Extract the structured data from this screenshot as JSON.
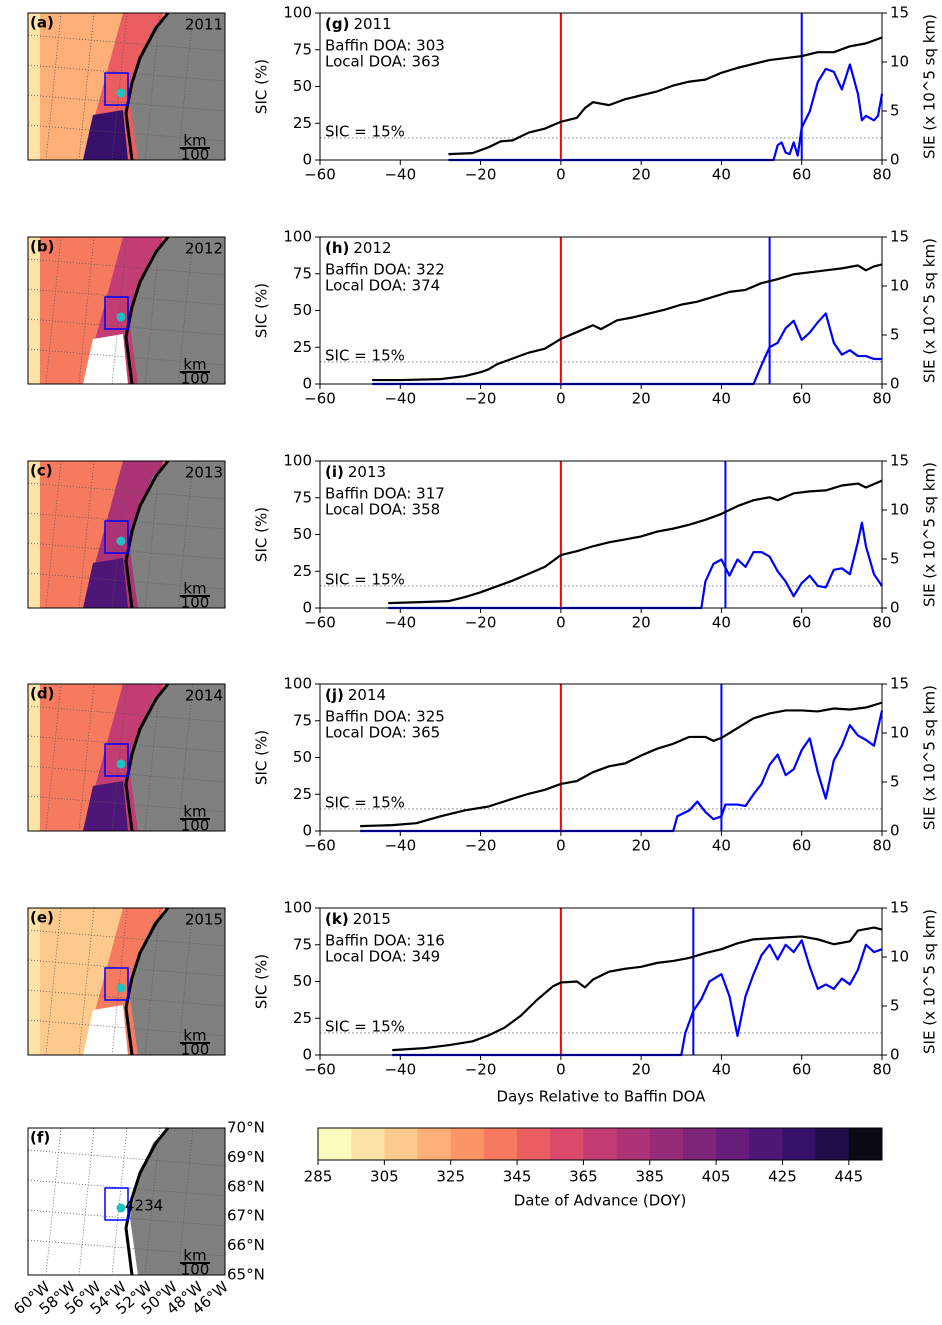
{
  "maps": [
    {
      "label": "(a)",
      "year": "2011",
      "scale_unit": "km",
      "scale_value": "100"
    },
    {
      "label": "(b)",
      "year": "2012",
      "scale_unit": "km",
      "scale_value": "100"
    },
    {
      "label": "(c)",
      "year": "2013",
      "scale_unit": "km",
      "scale_value": "100"
    },
    {
      "label": "(d)",
      "year": "2014",
      "scale_unit": "km",
      "scale_value": "100"
    },
    {
      "label": "(e)",
      "year": "2015",
      "scale_unit": "km",
      "scale_value": "100"
    },
    {
      "label": "(f)",
      "station": "4234",
      "scale_unit": "km",
      "scale_value": "100",
      "lat_labels": [
        "70°N",
        "69°N",
        "68°N",
        "67°N",
        "66°N",
        "65°N"
      ],
      "lon_labels": [
        "60°W",
        "58°W",
        "56°W",
        "54°W",
        "52°W",
        "50°W",
        "48°W",
        "46°W"
      ]
    }
  ],
  "chart_data": [
    {
      "type": "line",
      "panel_label": "(g)",
      "year": "2011",
      "baffin_doa": "Baffin DOA: 303",
      "local_doa": "Local DOA: 363",
      "threshold_label": "SIC = 15%",
      "hline": 15,
      "ylabel": "SIC (%)",
      "y2label": "SIE (x 10^5 sq km)",
      "xlim": [
        -60,
        80
      ],
      "xticks": [
        {
          "value": -60,
          "label": "−60"
        },
        {
          "value": -40,
          "label": "−40"
        },
        {
          "value": -20,
          "label": "−20"
        },
        0,
        20,
        40,
        60,
        80
      ],
      "ylim": [
        0,
        100
      ],
      "yticks": [
        0,
        25,
        50,
        75,
        100
      ],
      "y2lim": [
        0,
        15
      ],
      "y2ticks": [
        0,
        5,
        10,
        15
      ],
      "vlines": [
        {
          "x": 0,
          "color": "#ff0000"
        },
        {
          "x": 60,
          "color": "#0000ff"
        }
      ],
      "series": [
        {
          "color": "#000000",
          "axis": "y2",
          "x": [
            -28,
            -22,
            -18,
            -15,
            -12,
            -8,
            -4,
            0,
            4,
            6,
            8,
            12,
            16,
            20,
            24,
            28,
            32,
            36,
            40,
            44,
            48,
            52,
            56,
            60,
            64,
            68,
            72,
            76,
            80
          ],
          "values": [
            0.6,
            0.7,
            1.3,
            1.9,
            2.0,
            2.8,
            3.2,
            3.9,
            4.3,
            5.3,
            5.9,
            5.6,
            6.2,
            6.6,
            7.0,
            7.6,
            8.0,
            8.2,
            8.9,
            9.4,
            9.8,
            10.2,
            10.4,
            10.6,
            11.0,
            11.0,
            11.6,
            11.9,
            12.5
          ]
        },
        {
          "color": "#0000ff",
          "axis": "y",
          "x": [
            -28,
            53,
            54,
            55,
            56,
            57,
            58,
            59,
            60,
            62,
            64,
            66,
            68,
            70,
            72,
            74,
            75,
            76,
            78,
            79,
            80
          ],
          "values": [
            0,
            0,
            10,
            12,
            5,
            4,
            12,
            3,
            22,
            33,
            53,
            62,
            60,
            48,
            65,
            45,
            27,
            30,
            27,
            30,
            45
          ]
        }
      ]
    },
    {
      "type": "line",
      "panel_label": "(h)",
      "year": "2012",
      "baffin_doa": "Baffin DOA: 322",
      "local_doa": "Local DOA: 374",
      "threshold_label": "SIC = 15%",
      "hline": 15,
      "ylabel": "SIC (%)",
      "y2label": "SIE (x 10^5 sq km)",
      "xlim": [
        -60,
        80
      ],
      "xticks": [
        {
          "value": -60,
          "label": "−60"
        },
        {
          "value": -40,
          "label": "−40"
        },
        {
          "value": -20,
          "label": "−20"
        },
        0,
        20,
        40,
        60,
        80
      ],
      "ylim": [
        0,
        100
      ],
      "yticks": [
        0,
        25,
        50,
        75,
        100
      ],
      "y2lim": [
        0,
        15
      ],
      "y2ticks": [
        0,
        5,
        10,
        15
      ],
      "vlines": [
        {
          "x": 0,
          "color": "#ff0000"
        },
        {
          "x": 52,
          "color": "#0000ff"
        }
      ],
      "series": [
        {
          "color": "#000000",
          "axis": "y2",
          "x": [
            -47,
            -40,
            -30,
            -24,
            -20,
            -18,
            -16,
            -12,
            -8,
            -4,
            0,
            4,
            8,
            10,
            14,
            18,
            22,
            26,
            30,
            34,
            38,
            42,
            46,
            50,
            54,
            58,
            62,
            66,
            70,
            74,
            76,
            78,
            80
          ],
          "values": [
            0.4,
            0.4,
            0.5,
            0.8,
            1.2,
            1.5,
            2.0,
            2.6,
            3.2,
            3.6,
            4.6,
            5.3,
            6.0,
            5.6,
            6.5,
            6.8,
            7.2,
            7.6,
            8.1,
            8.4,
            8.9,
            9.4,
            9.6,
            10.3,
            10.7,
            11.2,
            11.4,
            11.6,
            11.8,
            12.1,
            11.6,
            12.0,
            12.2
          ]
        },
        {
          "color": "#0000ff",
          "axis": "y",
          "x": [
            -47,
            48,
            50,
            52,
            54,
            56,
            58,
            60,
            62,
            64,
            66,
            68,
            70,
            72,
            74,
            76,
            78,
            80
          ],
          "values": [
            0,
            0,
            13,
            25,
            28,
            38,
            43,
            30,
            35,
            42,
            48,
            28,
            20,
            23,
            19,
            19,
            17,
            17
          ]
        }
      ]
    },
    {
      "type": "line",
      "panel_label": "(i)",
      "year": "2013",
      "baffin_doa": "Baffin DOA: 317",
      "local_doa": "Local DOA: 358",
      "threshold_label": "SIC = 15%",
      "hline": 15,
      "ylabel": "SIC (%)",
      "y2label": "SIE (x 10^5 sq km)",
      "xlim": [
        -60,
        80
      ],
      "xticks": [
        {
          "value": -60,
          "label": "−60"
        },
        {
          "value": -40,
          "label": "−40"
        },
        {
          "value": -20,
          "label": "−20"
        },
        0,
        20,
        40,
        60,
        80
      ],
      "ylim": [
        0,
        100
      ],
      "yticks": [
        0,
        25,
        50,
        75,
        100
      ],
      "y2lim": [
        0,
        15
      ],
      "y2ticks": [
        0,
        5,
        10,
        15
      ],
      "vlines": [
        {
          "x": 0,
          "color": "#ff0000"
        },
        {
          "x": 41,
          "color": "#0000ff"
        }
      ],
      "series": [
        {
          "color": "#000000",
          "axis": "y2",
          "x": [
            -43,
            -35,
            -28,
            -24,
            -20,
            -16,
            -12,
            -8,
            -4,
            0,
            4,
            8,
            12,
            16,
            20,
            24,
            28,
            32,
            36,
            40,
            44,
            48,
            52,
            54,
            58,
            62,
            66,
            70,
            74,
            76,
            80
          ],
          "values": [
            0.5,
            0.6,
            0.7,
            1.1,
            1.6,
            2.2,
            2.8,
            3.5,
            4.2,
            5.4,
            5.8,
            6.3,
            6.7,
            7.0,
            7.3,
            7.8,
            8.1,
            8.5,
            9.0,
            9.6,
            10.4,
            11.0,
            11.3,
            11.0,
            11.7,
            11.9,
            12.0,
            12.5,
            12.7,
            12.3,
            13.0
          ]
        },
        {
          "color": "#0000ff",
          "axis": "y",
          "x": [
            -43,
            35,
            36,
            38,
            40,
            42,
            44,
            46,
            48,
            50,
            52,
            54,
            56,
            58,
            60,
            62,
            64,
            66,
            68,
            70,
            72,
            74,
            75,
            76,
            78,
            80
          ],
          "values": [
            0,
            0,
            18,
            30,
            33,
            22,
            33,
            28,
            38,
            38,
            35,
            25,
            18,
            8,
            17,
            22,
            15,
            14,
            26,
            27,
            23,
            45,
            58,
            42,
            23,
            15
          ]
        }
      ]
    },
    {
      "type": "line",
      "panel_label": "(j)",
      "year": "2014",
      "baffin_doa": "Baffin DOA: 325",
      "local_doa": "Local DOA: 365",
      "threshold_label": "SIC = 15%",
      "hline": 15,
      "ylabel": "SIC (%)",
      "y2label": "SIE (x 10^5 sq km)",
      "xlim": [
        -60,
        80
      ],
      "xticks": [
        {
          "value": -60,
          "label": "−60"
        },
        {
          "value": -40,
          "label": "−40"
        },
        {
          "value": -20,
          "label": "−20"
        },
        0,
        20,
        40,
        60,
        80
      ],
      "ylim": [
        0,
        100
      ],
      "yticks": [
        0,
        25,
        50,
        75,
        100
      ],
      "y2lim": [
        0,
        15
      ],
      "y2ticks": [
        0,
        5,
        10,
        15
      ],
      "vlines": [
        {
          "x": 0,
          "color": "#ff0000"
        },
        {
          "x": 40,
          "color": "#0000ff"
        }
      ],
      "series": [
        {
          "color": "#000000",
          "axis": "y2",
          "x": [
            -50,
            -42,
            -36,
            -30,
            -24,
            -18,
            -12,
            -8,
            -4,
            0,
            4,
            8,
            12,
            16,
            20,
            24,
            28,
            32,
            36,
            38,
            40,
            44,
            48,
            52,
            56,
            60,
            64,
            68,
            72,
            76,
            80
          ],
          "values": [
            0.5,
            0.6,
            0.8,
            1.5,
            2.1,
            2.5,
            3.3,
            3.8,
            4.2,
            4.8,
            5.1,
            6.0,
            6.6,
            6.9,
            7.7,
            8.4,
            8.9,
            9.6,
            9.6,
            9.2,
            9.5,
            10.5,
            11.5,
            12.0,
            12.3,
            12.3,
            12.2,
            12.5,
            12.4,
            12.6,
            13.1
          ]
        },
        {
          "color": "#0000ff",
          "axis": "y",
          "x": [
            -50,
            28,
            29,
            32,
            34,
            36,
            38,
            40,
            41,
            44,
            46,
            48,
            50,
            52,
            54,
            56,
            58,
            60,
            62,
            64,
            66,
            68,
            70,
            72,
            74,
            76,
            78,
            80
          ],
          "values": [
            0,
            0,
            10,
            14,
            20,
            13,
            8,
            10,
            18,
            18,
            17,
            25,
            32,
            45,
            52,
            38,
            42,
            55,
            63,
            40,
            22,
            48,
            58,
            72,
            65,
            62,
            58,
            82
          ]
        }
      ]
    },
    {
      "type": "line",
      "panel_label": "(k)",
      "year": "2015",
      "baffin_doa": "Baffin DOA: 316",
      "local_doa": "Local DOA: 349",
      "threshold_label": "SIC = 15%",
      "hline": 15,
      "ylabel": "SIC (%)",
      "y2label": "SIE (x 10^5 sq km)",
      "xlabel": "Days Relative to Baffin DOA",
      "xlim": [
        -60,
        80
      ],
      "xticks": [
        {
          "value": -60,
          "label": "−60"
        },
        {
          "value": -40,
          "label": "−40"
        },
        {
          "value": -20,
          "label": "−20"
        },
        0,
        20,
        40,
        60,
        80
      ],
      "ylim": [
        0,
        100
      ],
      "yticks": [
        0,
        25,
        50,
        75,
        100
      ],
      "y2lim": [
        0,
        15
      ],
      "y2ticks": [
        0,
        5,
        10,
        15
      ],
      "vlines": [
        {
          "x": 0,
          "color": "#ff0000"
        },
        {
          "x": 33,
          "color": "#0000ff"
        }
      ],
      "series": [
        {
          "color": "#000000",
          "axis": "y2",
          "x": [
            -42,
            -34,
            -28,
            -22,
            -18,
            -14,
            -10,
            -6,
            -2,
            0,
            4,
            6,
            8,
            12,
            16,
            20,
            24,
            28,
            32,
            36,
            40,
            44,
            48,
            52,
            56,
            60,
            64,
            68,
            72,
            74,
            78,
            80
          ],
          "values": [
            0.5,
            0.7,
            1.0,
            1.4,
            2.0,
            2.8,
            4.0,
            5.6,
            7.0,
            7.4,
            7.5,
            6.9,
            7.7,
            8.5,
            8.8,
            9.0,
            9.4,
            9.6,
            9.9,
            10.4,
            10.8,
            11.4,
            11.8,
            11.9,
            12.0,
            12.1,
            11.8,
            11.3,
            11.6,
            12.7,
            13.0,
            12.8
          ]
        },
        {
          "color": "#0000ff",
          "axis": "y",
          "x": [
            -42,
            30,
            31,
            33,
            35,
            37,
            40,
            42,
            44,
            46,
            48,
            50,
            52,
            54,
            56,
            58,
            60,
            62,
            64,
            66,
            68,
            70,
            72,
            74,
            76,
            78,
            80
          ],
          "values": [
            0,
            0,
            15,
            30,
            38,
            50,
            55,
            40,
            13,
            40,
            55,
            68,
            75,
            65,
            75,
            70,
            78,
            60,
            45,
            48,
            45,
            52,
            48,
            58,
            75,
            70,
            72
          ]
        }
      ]
    },
    {
      "type": "colorbar",
      "xlabel": "Date of Advance (DOY)",
      "xlim": [
        285,
        455
      ],
      "xticks": [
        285,
        305,
        325,
        345,
        365,
        385,
        405,
        425,
        445
      ],
      "colors": [
        "#fbfbbe",
        "#fde3a7",
        "#fec98d",
        "#fdaf78",
        "#fb9568",
        "#f67a5f",
        "#ea5e62",
        "#d94a6b",
        "#c33c73",
        "#ac3376",
        "#952b79",
        "#7d2579",
        "#661e7a",
        "#4e1677",
        "#36106b",
        "#1e0e45",
        "#0a0a14"
      ]
    }
  ]
}
